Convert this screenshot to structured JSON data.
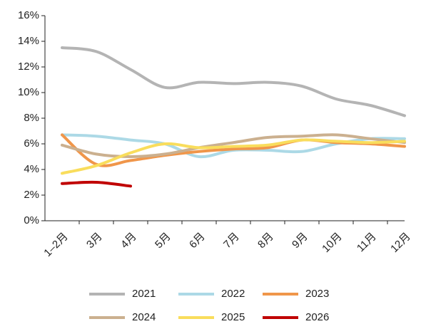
{
  "chart_data": {
    "type": "line",
    "categories": [
      "1–2月",
      "3月",
      "4月",
      "5月",
      "6月",
      "7月",
      "8月",
      "9月",
      "10月",
      "11月",
      "12月"
    ],
    "series": [
      {
        "name": "2021",
        "color": "#b4b4b4",
        "values": [
          13.5,
          13.2,
          11.8,
          10.4,
          10.8,
          10.7,
          10.8,
          10.5,
          9.5,
          9.0,
          8.2
        ]
      },
      {
        "name": "2022",
        "color": "#acd9e6",
        "values": [
          6.7,
          6.6,
          6.3,
          6.0,
          5.0,
          5.5,
          5.5,
          5.4,
          6.0,
          6.4,
          6.4
        ]
      },
      {
        "name": "2023",
        "color": "#f0964a",
        "values": [
          6.7,
          4.4,
          4.7,
          5.1,
          5.4,
          5.6,
          5.7,
          6.3,
          6.1,
          6.0,
          5.8
        ]
      },
      {
        "name": "2024",
        "color": "#cbb08f",
        "values": [
          5.9,
          5.2,
          5.0,
          5.2,
          5.7,
          6.1,
          6.5,
          6.6,
          6.7,
          6.4,
          6.1
        ]
      },
      {
        "name": "2025",
        "color": "#f9dd5c",
        "values": [
          3.7,
          4.3,
          5.3,
          6.0,
          5.7,
          5.8,
          5.9,
          6.3,
          6.2,
          6.1,
          6.2
        ]
      },
      {
        "name": "2026",
        "color": "#c00000",
        "values": [
          2.9,
          3.0,
          2.7,
          null,
          null,
          null,
          null,
          null,
          null,
          null,
          null
        ]
      }
    ],
    "ylim": [
      0,
      16
    ],
    "yticks": [
      {
        "value": 0,
        "label": "0%"
      },
      {
        "value": 2,
        "label": "2%"
      },
      {
        "value": 4,
        "label": "4%"
      },
      {
        "value": 6,
        "label": "6%"
      },
      {
        "value": 8,
        "label": "8%"
      },
      {
        "value": 10,
        "label": "10%"
      },
      {
        "value": 12,
        "label": "12%"
      },
      {
        "value": 14,
        "label": "14%"
      },
      {
        "value": 16,
        "label": "16%"
      }
    ],
    "grid": false
  }
}
